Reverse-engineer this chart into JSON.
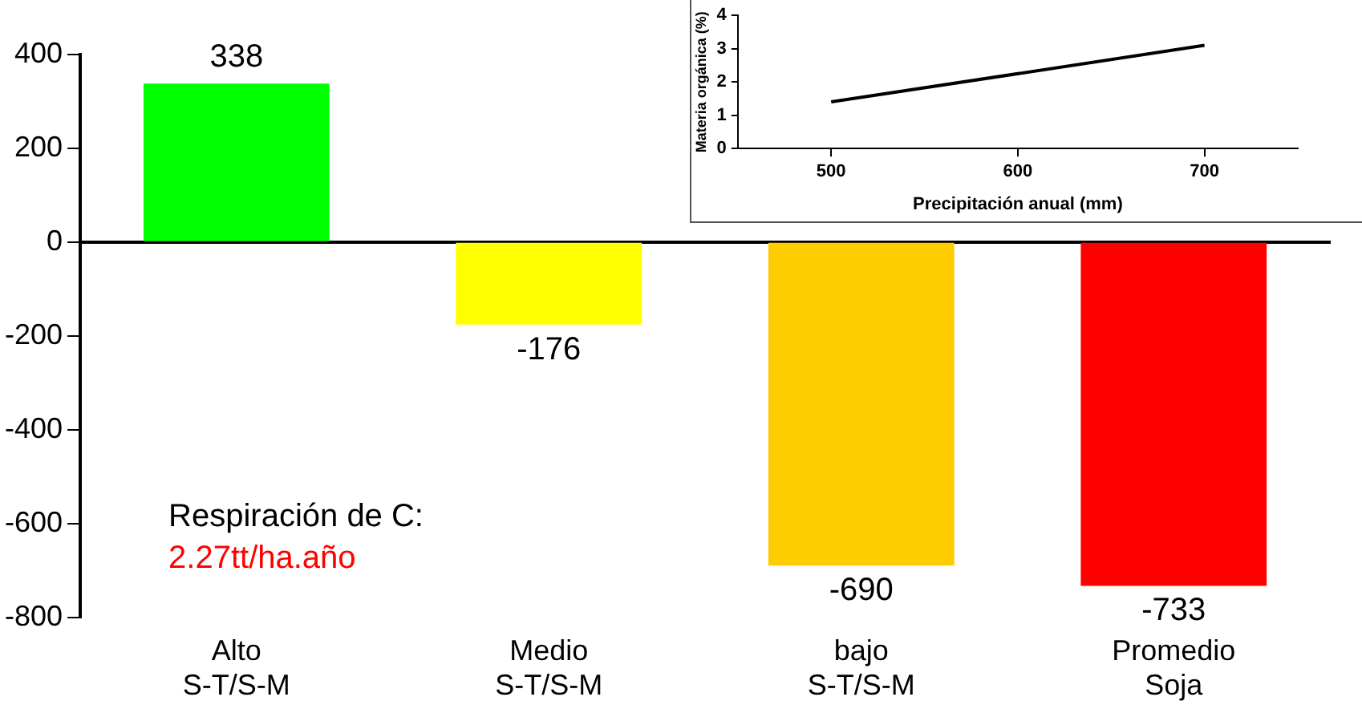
{
  "chart_data": [
    {
      "type": "bar",
      "categories": [
        "Alto S-T/S-M",
        "Medio S-T/S-M",
        "bajo S-T/S-M",
        "Promedio Soja"
      ],
      "values": [
        338,
        -176,
        -690,
        -733
      ],
      "colors": [
        "#00ff00",
        "#ffff00",
        "#ffcc00",
        "#ff0000"
      ],
      "ylim": [
        -800,
        400
      ],
      "yticks": [
        -800,
        -600,
        -400,
        -200,
        0,
        200,
        400
      ],
      "data_labels": true,
      "legend": false,
      "annotations": [
        "Respiración de C:",
        "2.27tt/ha.año"
      ]
    },
    {
      "type": "line",
      "x": [
        500,
        700
      ],
      "values": [
        1.4,
        3.1
      ],
      "color": "#000000",
      "xlim": [
        450,
        750
      ],
      "xticks": [
        500,
        600,
        700
      ],
      "ylim": [
        0,
        4
      ],
      "yticks": [
        0,
        1,
        2,
        3,
        4
      ],
      "xlabel": "Precipitación anual (mm)",
      "ylabel": "Materia orgánica (%)",
      "grid": false,
      "legend": false,
      "marker": "none",
      "line_style": "solid"
    }
  ]
}
